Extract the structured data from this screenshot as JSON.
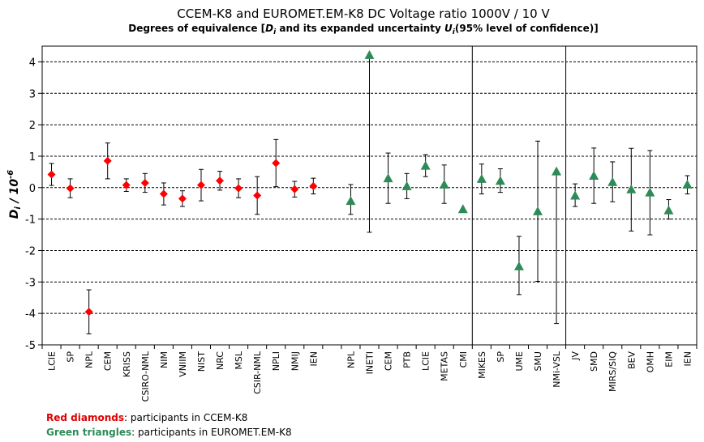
{
  "colors": {
    "red": "#ff0000",
    "green": "#2e8b57",
    "grid": "#000000"
  },
  "chart_data": {
    "type": "scatter",
    "title": "CCEM-K8 and EUROMET.EM-K8    DC Voltage ratio 1000V / 10 V",
    "subtitle": {
      "pre": "Degrees of equivalence [",
      "D": "D",
      "i1": "i",
      "mid": " and its expanded uncertainty ",
      "U": "U",
      "i2": "i",
      "post": "(95% level of confidence)]"
    },
    "ylabel": {
      "D": "D",
      "i": "i",
      "slash": " / 10",
      "exp": "-6"
    },
    "ylim": [
      -5,
      4.5
    ],
    "yticks": [
      "4",
      "3",
      "2",
      "1",
      "0",
      "-1",
      "-2",
      "-3",
      "-4",
      "-5"
    ],
    "grid": "horizontal dashed",
    "categories": [
      "LCIE",
      "SP",
      "NPL",
      "CEM",
      "KRISS",
      "CSIRO-NML",
      "NIM",
      "VNIIM",
      "NIST",
      "NRC",
      "MSL",
      "CSIR-NML",
      "NPLI",
      "NMIJ",
      "IEN",
      "",
      "NPL",
      "INETI",
      "CEM",
      "PTB",
      "LCIE",
      "METAS",
      "CMI",
      "MIKES",
      "SP",
      "UME",
      "SMU",
      "NMi-VSL",
      "JV",
      "SMD",
      "MIRS/SIQ",
      "BEV",
      "OMH",
      "EIM",
      "IEN"
    ],
    "vertical_lines_after": [
      "CMI",
      "NMi-VSL"
    ],
    "series": [
      {
        "name": "Red diamonds",
        "marker": "diamond",
        "color": "#ff0000",
        "points": [
          {
            "label": "LCIE",
            "value": 0.42,
            "low": 0.07,
            "high": 0.77
          },
          {
            "label": "SP",
            "value": -0.02,
            "low": -0.32,
            "high": 0.28
          },
          {
            "label": "NPL",
            "value": -3.95,
            "low": -4.65,
            "high": -3.25
          },
          {
            "label": "CEM",
            "value": 0.85,
            "low": 0.28,
            "high": 1.42
          },
          {
            "label": "KRISS",
            "value": 0.08,
            "low": -0.12,
            "high": 0.28
          },
          {
            "label": "CSIRO-NML",
            "value": 0.15,
            "low": -0.15,
            "high": 0.45
          },
          {
            "label": "NIM",
            "value": -0.2,
            "low": -0.55,
            "high": 0.15
          },
          {
            "label": "VNIIM",
            "value": -0.35,
            "low": -0.6,
            "high": -0.1
          },
          {
            "label": "NIST",
            "value": 0.08,
            "low": -0.42,
            "high": 0.58
          },
          {
            "label": "NRC",
            "value": 0.22,
            "low": -0.08,
            "high": 0.52
          },
          {
            "label": "MSL",
            "value": -0.02,
            "low": -0.32,
            "high": 0.28
          },
          {
            "label": "CSIR-NML",
            "value": -0.25,
            "low": -0.85,
            "high": 0.35
          },
          {
            "label": "NPLI",
            "value": 0.78,
            "low": 0.03,
            "high": 1.53
          },
          {
            "label": "NMIJ",
            "value": -0.05,
            "low": -0.3,
            "high": 0.2
          },
          {
            "label": "IEN",
            "value": 0.05,
            "low": -0.2,
            "high": 0.3
          }
        ]
      },
      {
        "name": "Green triangles",
        "marker": "triangle",
        "color": "#2e8b57",
        "points": [
          {
            "label": "NPL",
            "value": -0.42,
            "low": -0.85,
            "high": 0.1
          },
          {
            "label": "INETI",
            "value": 4.22,
            "low": -1.42,
            "high": 4.22
          },
          {
            "label": "CEM",
            "value": 0.3,
            "low": -0.5,
            "high": 1.1
          },
          {
            "label": "PTB",
            "value": 0.05,
            "low": -0.35,
            "high": 0.45
          },
          {
            "label": "LCIE",
            "value": 0.7,
            "low": 0.35,
            "high": 1.05
          },
          {
            "label": "METAS",
            "value": 0.1,
            "low": -0.5,
            "high": 0.72
          },
          {
            "label": "CMI",
            "value": -0.68,
            "low": -0.68,
            "high": -0.68
          },
          {
            "label": "MIKES",
            "value": 0.28,
            "low": -0.2,
            "high": 0.75
          },
          {
            "label": "SP",
            "value": 0.22,
            "low": -0.15,
            "high": 0.6
          },
          {
            "label": "UME",
            "value": -2.5,
            "low": -3.4,
            "high": -1.55
          },
          {
            "label": "SMU",
            "value": -0.75,
            "low": -2.98,
            "high": 1.48
          },
          {
            "label": "NMi-VSL",
            "value": 0.52,
            "low": -4.32,
            "high": 0.52
          },
          {
            "label": "JV",
            "value": -0.25,
            "low": -0.6,
            "high": 0.12
          },
          {
            "label": "SMD",
            "value": 0.38,
            "low": -0.5,
            "high": 1.26
          },
          {
            "label": "MIRS/SIQ",
            "value": 0.18,
            "low": -0.45,
            "high": 0.82
          },
          {
            "label": "BEV",
            "value": -0.05,
            "low": -1.38,
            "high": 1.25
          },
          {
            "label": "OMH",
            "value": -0.15,
            "low": -1.5,
            "high": 1.18
          },
          {
            "label": "EIM",
            "value": -0.72,
            "low": -1.0,
            "high": -0.38
          },
          {
            "label": "IEN",
            "value": 0.1,
            "low": -0.2,
            "high": 0.38
          }
        ]
      }
    ]
  },
  "legend": {
    "red_label": "Red diamonds",
    "red_text": ": participants in CCEM-K8",
    "green_label": "Green triangles",
    "green_text": ": participants in EUROMET.EM-K8"
  }
}
